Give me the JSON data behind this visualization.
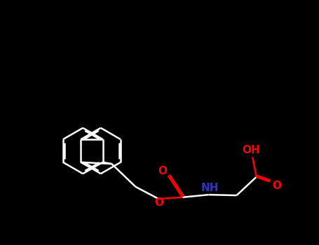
{
  "bg_color": "#000000",
  "bond_color": "#ffffff",
  "o_color": "#ff0000",
  "n_color": "#3333bb",
  "font_size": 11,
  "bond_width": 1.8,
  "figsize": [
    4.55,
    3.5
  ],
  "dpi": 100,
  "xlim": [
    0,
    10
  ],
  "ylim": [
    0,
    7.7
  ]
}
